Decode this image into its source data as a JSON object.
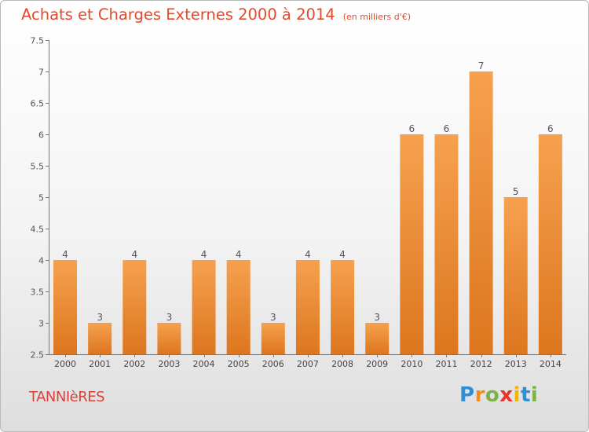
{
  "title": "Achats et Charges Externes 2000 à 2014",
  "unit": "(en milliers d'€)",
  "commune": "TANNIèRES",
  "logo": {
    "letters": [
      "P",
      "r",
      "o",
      "x",
      "i",
      "t",
      "i"
    ],
    "colors": [
      "#2d8fd6",
      "#f28c1c",
      "#7cb342",
      "#e5342c",
      "#f4b400",
      "#2d8fd6",
      "#7cb342"
    ]
  },
  "colors": {
    "bar_top": "#f6a14f",
    "bar_bottom": "#dd761e",
    "title": "#e44a2a"
  },
  "chart_data": {
    "type": "bar",
    "title": "Achats et Charges Externes 2000 à 2014",
    "subtitle": "(en milliers d'€)",
    "categories": [
      "2000",
      "2001",
      "2002",
      "2003",
      "2004",
      "2005",
      "2006",
      "2007",
      "2008",
      "2009",
      "2010",
      "2011",
      "2012",
      "2013",
      "2014"
    ],
    "values": [
      4,
      3,
      4,
      3,
      4,
      4,
      3,
      4,
      4,
      3,
      6,
      6,
      7,
      5,
      6
    ],
    "value_labels": [
      "4",
      "3",
      "4",
      "3",
      "4",
      "4",
      "3",
      "4",
      "4",
      "3",
      "6",
      "6",
      "7",
      "5",
      "6"
    ],
    "yticks": [
      "2.5",
      "3",
      "3.5",
      "4",
      "4.5",
      "5",
      "5.5",
      "6",
      "6.5",
      "7",
      "7.5"
    ],
    "ylim": [
      2.5,
      7.5
    ],
    "grid": false,
    "legend": "none"
  }
}
